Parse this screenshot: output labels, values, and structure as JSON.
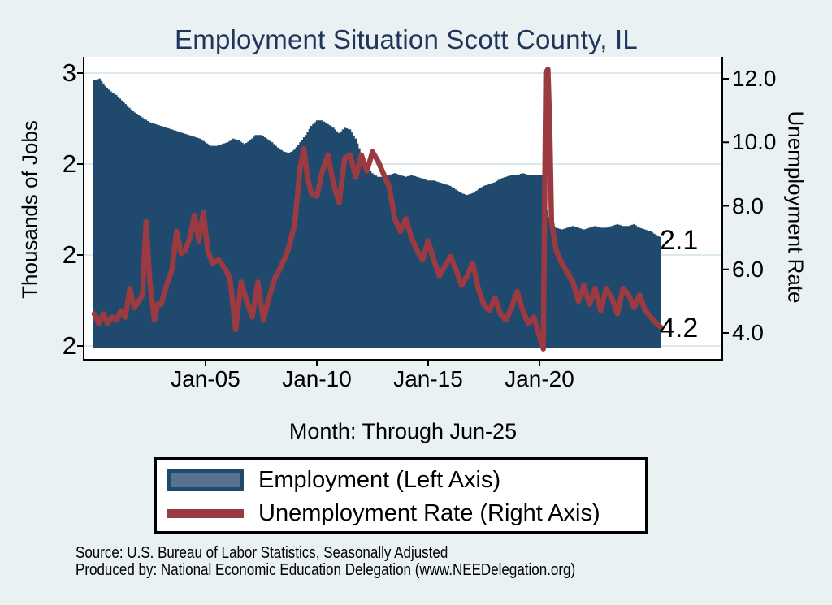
{
  "title": "Employment Situation Scott  County, IL",
  "footer": {
    "source": "Source: U.S. Bureau of Labor Statistics, Seasonally Adjusted",
    "produced_by": "Produced by: National Economic Education Delegation (www.NEEDelegation.org)"
  },
  "chart_data": {
    "type": "bar",
    "title": "Employment Situation Scott  County, IL",
    "xlabel": "Month: Through Jun-25",
    "x_axis": {
      "range": [
        1999.5,
        2028.2
      ],
      "tick_values": [
        2005,
        2010,
        2015,
        2020
      ],
      "tick_labels": [
        "Jan-05",
        "Jan-10",
        "Jan-15",
        "Jan-20"
      ]
    },
    "left_axis": {
      "label": "Thousands of Jobs",
      "range": [
        1.5,
        3.0
      ],
      "tick_values": [
        3.0,
        2.5,
        2.0,
        1.5
      ],
      "tick_labels": [
        "3",
        "2",
        "2",
        "2"
      ],
      "grid": true
    },
    "right_axis": {
      "label": "Unemployment Rate",
      "range": [
        3.3,
        12.6
      ],
      "tick_values": [
        12.0,
        10.0,
        8.0,
        6.0,
        4.0
      ],
      "tick_labels": [
        "12.0",
        "10.0",
        "8.0",
        "6.0",
        "4.0"
      ],
      "grid": false
    },
    "legend": {
      "position": "bottom",
      "entries": [
        {
          "label": "Employment (Left Axis)",
          "type": "bar-swatch"
        },
        {
          "label": "Unemployment Rate (Right Axis)",
          "type": "line-swatch"
        }
      ]
    },
    "annotations": [
      {
        "text": "2.1",
        "series": "employment",
        "x": 2025.42,
        "value": 2.1
      },
      {
        "text": "4.2",
        "series": "unemployment_rate",
        "x": 2025.42,
        "value": 4.2
      }
    ],
    "series": [
      {
        "name": "Employment (Left Axis)",
        "axis": "left",
        "render": "bar",
        "units": "thousands of jobs",
        "points": [
          [
            2000.0,
            2.96
          ],
          [
            2000.25,
            2.97
          ],
          [
            2000.5,
            2.93
          ],
          [
            2000.75,
            2.9
          ],
          [
            2001.0,
            2.88
          ],
          [
            2001.25,
            2.85
          ],
          [
            2001.5,
            2.82
          ],
          [
            2001.75,
            2.79
          ],
          [
            2002.0,
            2.77
          ],
          [
            2002.25,
            2.75
          ],
          [
            2002.5,
            2.73
          ],
          [
            2002.75,
            2.72
          ],
          [
            2003.0,
            2.71
          ],
          [
            2003.25,
            2.7
          ],
          [
            2003.5,
            2.69
          ],
          [
            2003.75,
            2.68
          ],
          [
            2004.0,
            2.67
          ],
          [
            2004.25,
            2.66
          ],
          [
            2004.5,
            2.65
          ],
          [
            2004.75,
            2.64
          ],
          [
            2005.0,
            2.62
          ],
          [
            2005.25,
            2.6
          ],
          [
            2005.5,
            2.6
          ],
          [
            2005.75,
            2.61
          ],
          [
            2006.0,
            2.62
          ],
          [
            2006.25,
            2.64
          ],
          [
            2006.5,
            2.63
          ],
          [
            2006.75,
            2.61
          ],
          [
            2007.0,
            2.63
          ],
          [
            2007.25,
            2.66
          ],
          [
            2007.5,
            2.66
          ],
          [
            2007.75,
            2.64
          ],
          [
            2008.0,
            2.62
          ],
          [
            2008.25,
            2.59
          ],
          [
            2008.5,
            2.57
          ],
          [
            2008.75,
            2.56
          ],
          [
            2009.0,
            2.58
          ],
          [
            2009.25,
            2.62
          ],
          [
            2009.5,
            2.66
          ],
          [
            2009.75,
            2.71
          ],
          [
            2010.0,
            2.74
          ],
          [
            2010.25,
            2.74
          ],
          [
            2010.5,
            2.72
          ],
          [
            2010.75,
            2.7
          ],
          [
            2011.0,
            2.67
          ],
          [
            2011.25,
            2.7
          ],
          [
            2011.5,
            2.69
          ],
          [
            2011.75,
            2.64
          ],
          [
            2012.0,
            2.56
          ],
          [
            2012.25,
            2.49
          ],
          [
            2012.5,
            2.45
          ],
          [
            2012.75,
            2.43
          ],
          [
            2013.0,
            2.43
          ],
          [
            2013.25,
            2.44
          ],
          [
            2013.5,
            2.45
          ],
          [
            2013.75,
            2.44
          ],
          [
            2014.0,
            2.43
          ],
          [
            2014.25,
            2.44
          ],
          [
            2014.5,
            2.43
          ],
          [
            2014.75,
            2.42
          ],
          [
            2015.0,
            2.41
          ],
          [
            2015.25,
            2.41
          ],
          [
            2015.5,
            2.4
          ],
          [
            2015.75,
            2.39
          ],
          [
            2016.0,
            2.38
          ],
          [
            2016.25,
            2.36
          ],
          [
            2016.5,
            2.34
          ],
          [
            2016.75,
            2.33
          ],
          [
            2017.0,
            2.34
          ],
          [
            2017.25,
            2.36
          ],
          [
            2017.5,
            2.38
          ],
          [
            2017.75,
            2.39
          ],
          [
            2018.0,
            2.4
          ],
          [
            2018.25,
            2.42
          ],
          [
            2018.5,
            2.43
          ],
          [
            2018.75,
            2.44
          ],
          [
            2019.0,
            2.44
          ],
          [
            2019.25,
            2.45
          ],
          [
            2019.5,
            2.44
          ],
          [
            2019.75,
            2.44
          ],
          [
            2020.0,
            2.44
          ],
          [
            2020.17,
            2.44
          ],
          [
            2020.33,
            2.25
          ],
          [
            2020.5,
            2.17
          ],
          [
            2020.75,
            2.15
          ],
          [
            2021.0,
            2.14
          ],
          [
            2021.25,
            2.15
          ],
          [
            2021.5,
            2.16
          ],
          [
            2021.75,
            2.15
          ],
          [
            2022.0,
            2.14
          ],
          [
            2022.25,
            2.15
          ],
          [
            2022.5,
            2.16
          ],
          [
            2022.75,
            2.15
          ],
          [
            2023.0,
            2.15
          ],
          [
            2023.25,
            2.16
          ],
          [
            2023.5,
            2.17
          ],
          [
            2023.75,
            2.16
          ],
          [
            2024.0,
            2.16
          ],
          [
            2024.25,
            2.17
          ],
          [
            2024.5,
            2.15
          ],
          [
            2024.75,
            2.14
          ],
          [
            2025.0,
            2.13
          ],
          [
            2025.25,
            2.11
          ],
          [
            2025.42,
            2.1
          ]
        ]
      },
      {
        "name": "Unemployment Rate (Right Axis)",
        "axis": "right",
        "render": "line",
        "units": "percent",
        "points": [
          [
            2000.0,
            4.6
          ],
          [
            2000.2,
            4.3
          ],
          [
            2000.4,
            4.6
          ],
          [
            2000.6,
            4.3
          ],
          [
            2000.8,
            4.5
          ],
          [
            2001.0,
            4.4
          ],
          [
            2001.2,
            4.7
          ],
          [
            2001.4,
            4.5
          ],
          [
            2001.6,
            5.4
          ],
          [
            2001.8,
            4.8
          ],
          [
            2002.0,
            5.0
          ],
          [
            2002.17,
            5.2
          ],
          [
            2002.33,
            7.5
          ],
          [
            2002.5,
            5.6
          ],
          [
            2002.7,
            4.4
          ],
          [
            2002.85,
            4.9
          ],
          [
            2003.0,
            4.9
          ],
          [
            2003.25,
            5.5
          ],
          [
            2003.5,
            6.0
          ],
          [
            2003.7,
            7.2
          ],
          [
            2003.9,
            6.5
          ],
          [
            2004.1,
            6.6
          ],
          [
            2004.3,
            7.0
          ],
          [
            2004.5,
            7.7
          ],
          [
            2004.7,
            6.9
          ],
          [
            2004.9,
            7.8
          ],
          [
            2005.1,
            6.6
          ],
          [
            2005.3,
            6.2
          ],
          [
            2005.6,
            6.3
          ],
          [
            2005.9,
            6.0
          ],
          [
            2006.1,
            5.7
          ],
          [
            2006.35,
            4.1
          ],
          [
            2006.6,
            5.6
          ],
          [
            2006.85,
            5.0
          ],
          [
            2007.1,
            4.5
          ],
          [
            2007.35,
            5.6
          ],
          [
            2007.6,
            4.4
          ],
          [
            2007.85,
            5.1
          ],
          [
            2008.1,
            5.7
          ],
          [
            2008.4,
            6.1
          ],
          [
            2008.7,
            6.6
          ],
          [
            2009.0,
            7.4
          ],
          [
            2009.25,
            9.2
          ],
          [
            2009.42,
            9.8
          ],
          [
            2009.58,
            8.9
          ],
          [
            2009.75,
            8.4
          ],
          [
            2010.0,
            8.3
          ],
          [
            2010.25,
            9.1
          ],
          [
            2010.5,
            9.6
          ],
          [
            2010.75,
            8.7
          ],
          [
            2011.0,
            8.1
          ],
          [
            2011.25,
            9.5
          ],
          [
            2011.5,
            9.6
          ],
          [
            2011.75,
            8.9
          ],
          [
            2012.0,
            9.6
          ],
          [
            2012.25,
            9.1
          ],
          [
            2012.5,
            9.7
          ],
          [
            2012.75,
            9.4
          ],
          [
            2013.0,
            9.0
          ],
          [
            2013.25,
            8.6
          ],
          [
            2013.5,
            7.6
          ],
          [
            2013.75,
            7.2
          ],
          [
            2014.0,
            7.6
          ],
          [
            2014.25,
            7.0
          ],
          [
            2014.5,
            6.6
          ],
          [
            2014.75,
            6.3
          ],
          [
            2015.0,
            6.9
          ],
          [
            2015.25,
            6.3
          ],
          [
            2015.5,
            5.8
          ],
          [
            2015.75,
            6.1
          ],
          [
            2016.0,
            6.4
          ],
          [
            2016.25,
            6.0
          ],
          [
            2016.5,
            5.5
          ],
          [
            2016.75,
            5.8
          ],
          [
            2017.0,
            6.2
          ],
          [
            2017.25,
            5.4
          ],
          [
            2017.5,
            4.9
          ],
          [
            2017.75,
            4.7
          ],
          [
            2018.0,
            5.1
          ],
          [
            2018.25,
            4.6
          ],
          [
            2018.5,
            4.4
          ],
          [
            2018.75,
            4.8
          ],
          [
            2019.0,
            5.3
          ],
          [
            2019.25,
            4.7
          ],
          [
            2019.5,
            4.3
          ],
          [
            2019.75,
            4.5
          ],
          [
            2020.0,
            3.9
          ],
          [
            2020.17,
            3.5
          ],
          [
            2020.29,
            12.2
          ],
          [
            2020.38,
            12.3
          ],
          [
            2020.46,
            10.5
          ],
          [
            2020.54,
            7.5
          ],
          [
            2020.75,
            6.6
          ],
          [
            2021.0,
            6.2
          ],
          [
            2021.25,
            5.9
          ],
          [
            2021.5,
            5.6
          ],
          [
            2021.75,
            5.0
          ],
          [
            2022.0,
            5.5
          ],
          [
            2022.25,
            4.9
          ],
          [
            2022.5,
            5.4
          ],
          [
            2022.75,
            4.7
          ],
          [
            2023.0,
            5.4
          ],
          [
            2023.25,
            5.1
          ],
          [
            2023.5,
            4.6
          ],
          [
            2023.75,
            5.4
          ],
          [
            2024.0,
            5.2
          ],
          [
            2024.25,
            4.8
          ],
          [
            2024.5,
            5.2
          ],
          [
            2024.75,
            4.7
          ],
          [
            2025.0,
            4.5
          ],
          [
            2025.25,
            4.3
          ],
          [
            2025.42,
            4.2
          ]
        ]
      }
    ],
    "colors": {
      "background": "#e9f1f2",
      "plot_background": "#ffffff",
      "bar": "#1f4a6e",
      "line": "#9c3a41",
      "gridline": "#dce9f0",
      "axis": "#000000",
      "title": "#20355c",
      "legend_swatch_fill": "#567290"
    }
  }
}
